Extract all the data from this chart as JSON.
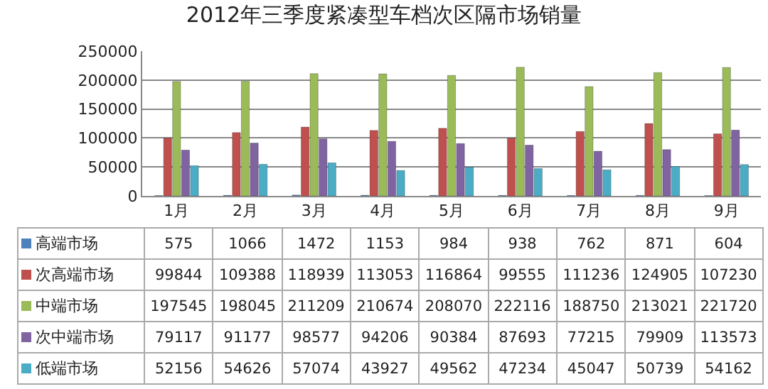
{
  "chart_data": {
    "type": "bar",
    "title": "2012年三季度紧凑型车档次区隔市场销量",
    "categories": [
      "1月",
      "2月",
      "3月",
      "4月",
      "5月",
      "6月",
      "7月",
      "8月",
      "9月"
    ],
    "series": [
      {
        "name": "高端市场",
        "color": "#4f81bd",
        "values": [
          575,
          1066,
          1472,
          1153,
          984,
          938,
          762,
          871,
          604
        ]
      },
      {
        "name": "次高端市场",
        "color": "#c0504d",
        "values": [
          99844,
          109388,
          118939,
          113053,
          116864,
          99555,
          111236,
          124905,
          107230
        ]
      },
      {
        "name": "中端市场",
        "color": "#9bbb59",
        "values": [
          197545,
          198045,
          211209,
          210674,
          208070,
          222116,
          188750,
          213021,
          221720
        ]
      },
      {
        "name": "次中端市场",
        "color": "#8064a2",
        "values": [
          79117,
          91177,
          98577,
          94206,
          90384,
          87693,
          77215,
          79909,
          113573
        ]
      },
      {
        "name": "低端市场",
        "color": "#4bacc6",
        "values": [
          52156,
          54626,
          57074,
          43927,
          49562,
          47234,
          45047,
          50739,
          54162
        ]
      }
    ],
    "ylim": [
      0,
      250000
    ],
    "yticks": [
      0,
      50000,
      100000,
      150000,
      200000,
      250000
    ],
    "grid": "y",
    "data_labels": true,
    "legend": "bottom left"
  }
}
